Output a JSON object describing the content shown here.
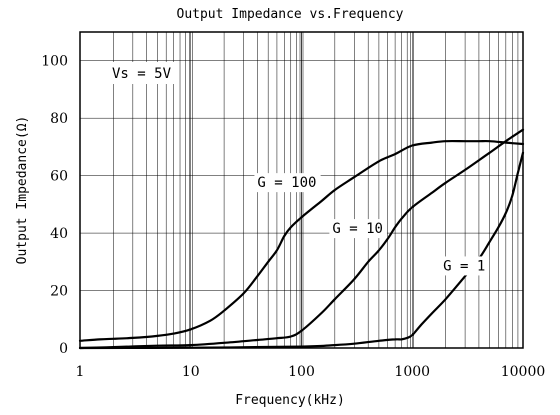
{
  "chart_data": {
    "type": "line",
    "title": "Output Impedance vs.Frequency",
    "xlabel": "Frequency(kHz)",
    "ylabel": "Output Impedance(Ω)",
    "x_scale": "log",
    "xlim": [
      1,
      10000
    ],
    "ylim": [
      0,
      110
    ],
    "x_ticks": [
      1,
      10,
      100,
      1000,
      10000
    ],
    "x_tick_labels": [
      "1",
      "10",
      "100",
      "1000",
      "10000"
    ],
    "y_ticks": [
      0,
      20,
      40,
      60,
      80,
      100
    ],
    "y_tick_labels": [
      "0",
      "20",
      "40",
      "60",
      "80",
      "100"
    ],
    "grid": true,
    "condition_label": "Vs = 5V",
    "series": [
      {
        "name": "G = 100",
        "x": [
          1,
          1.5,
          2,
          3,
          5,
          7,
          10,
          15,
          20,
          30,
          40,
          50,
          60,
          70,
          80,
          100,
          150,
          200,
          300,
          500,
          700,
          1000,
          1500,
          2000,
          3000,
          4000,
          5000,
          7000,
          10000
        ],
        "y": [
          2.5,
          3,
          3.2,
          3.5,
          4.2,
          5,
          6.5,
          9.5,
          13,
          19,
          25,
          30,
          34,
          39,
          42,
          45.5,
          51,
          55,
          59.5,
          65,
          67.5,
          70.5,
          71.5,
          72,
          72,
          72,
          72,
          71.5,
          71
        ]
      },
      {
        "name": "G = 10",
        "x": [
          1,
          2,
          5,
          10,
          20,
          40,
          60,
          80,
          100,
          150,
          200,
          300,
          400,
          500,
          600,
          700,
          800,
          1000,
          1500,
          2000,
          3000,
          5000,
          7000,
          10000
        ],
        "y": [
          0,
          0.3,
          0.8,
          1,
          1.8,
          2.8,
          3.4,
          4,
          6,
          12,
          17,
          24,
          30,
          34,
          38,
          42,
          45,
          49,
          54,
          57.5,
          62,
          68,
          72,
          76
        ]
      },
      {
        "name": "G = 1",
        "x": [
          1,
          10,
          100,
          200,
          300,
          500,
          700,
          800,
          900,
          1000,
          1200,
          1500,
          2000,
          3000,
          4000,
          5000,
          6000,
          7000,
          8000,
          9000,
          10000
        ],
        "y": [
          0,
          0.1,
          0.5,
          1,
          1.5,
          2.5,
          3,
          3,
          3.5,
          4.5,
          8,
          12,
          17,
          25,
          31,
          37,
          42,
          47,
          53,
          61,
          68
        ]
      }
    ],
    "annotations": [
      {
        "text": "G = 100",
        "x": 40,
        "y": 56
      },
      {
        "text": "G = 10",
        "x": 190,
        "y": 40
      },
      {
        "text": "G = 1",
        "x": 1900,
        "y": 27
      }
    ]
  }
}
